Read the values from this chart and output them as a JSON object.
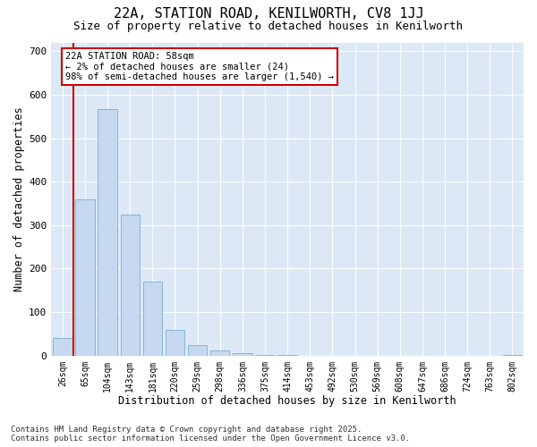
{
  "title_line1": "22A, STATION ROAD, KENILWORTH, CV8 1JJ",
  "title_line2": "Size of property relative to detached houses in Kenilworth",
  "xlabel": "Distribution of detached houses by size in Kenilworth",
  "ylabel": "Number of detached properties",
  "bin_labels": [
    "26sqm",
    "65sqm",
    "104sqm",
    "143sqm",
    "181sqm",
    "220sqm",
    "259sqm",
    "298sqm",
    "336sqm",
    "375sqm",
    "414sqm",
    "453sqm",
    "492sqm",
    "530sqm",
    "569sqm",
    "608sqm",
    "647sqm",
    "686sqm",
    "724sqm",
    "763sqm",
    "802sqm"
  ],
  "bar_heights": [
    40,
    360,
    567,
    325,
    170,
    60,
    25,
    12,
    5,
    2,
    1,
    0,
    0,
    0,
    0,
    0,
    0,
    0,
    0,
    0,
    1
  ],
  "bar_color": "#c5d8f0",
  "bar_edgecolor": "#7bafd4",
  "red_line_x": 0.5,
  "annotation_text": "22A STATION ROAD: 58sqm\n← 2% of detached houses are smaller (24)\n98% of semi-detached houses are larger (1,540) →",
  "annotation_box_color": "#ffffff",
  "annotation_box_edgecolor": "#cc0000",
  "red_line_color": "#cc0000",
  "plot_bg_color": "#dce8f5",
  "ylim": [
    0,
    720
  ],
  "yticks": [
    0,
    100,
    200,
    300,
    400,
    500,
    600,
    700
  ],
  "footer_line1": "Contains HM Land Registry data © Crown copyright and database right 2025.",
  "footer_line2": "Contains public sector information licensed under the Open Government Licence v3.0."
}
